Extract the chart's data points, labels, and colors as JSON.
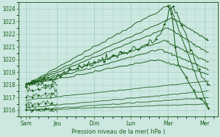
{
  "bg_color": "#cce8e0",
  "grid_color": "#a8cfc8",
  "line_color": "#1a5c1a",
  "ylabel": "Pression niveau de la mer( hPa )",
  "ylim": [
    1015.5,
    1024.5
  ],
  "yticks": [
    1016,
    1017,
    1018,
    1019,
    1020,
    1021,
    1022,
    1023,
    1024
  ],
  "x_labels": [
    "Sam",
    "Jeu",
    "Dim",
    "Lun",
    "Mar",
    "Mer"
  ],
  "x_positions": [
    0.15,
    1.0,
    2.0,
    3.0,
    4.0,
    5.0
  ],
  "xlim": [
    -0.05,
    5.35
  ]
}
